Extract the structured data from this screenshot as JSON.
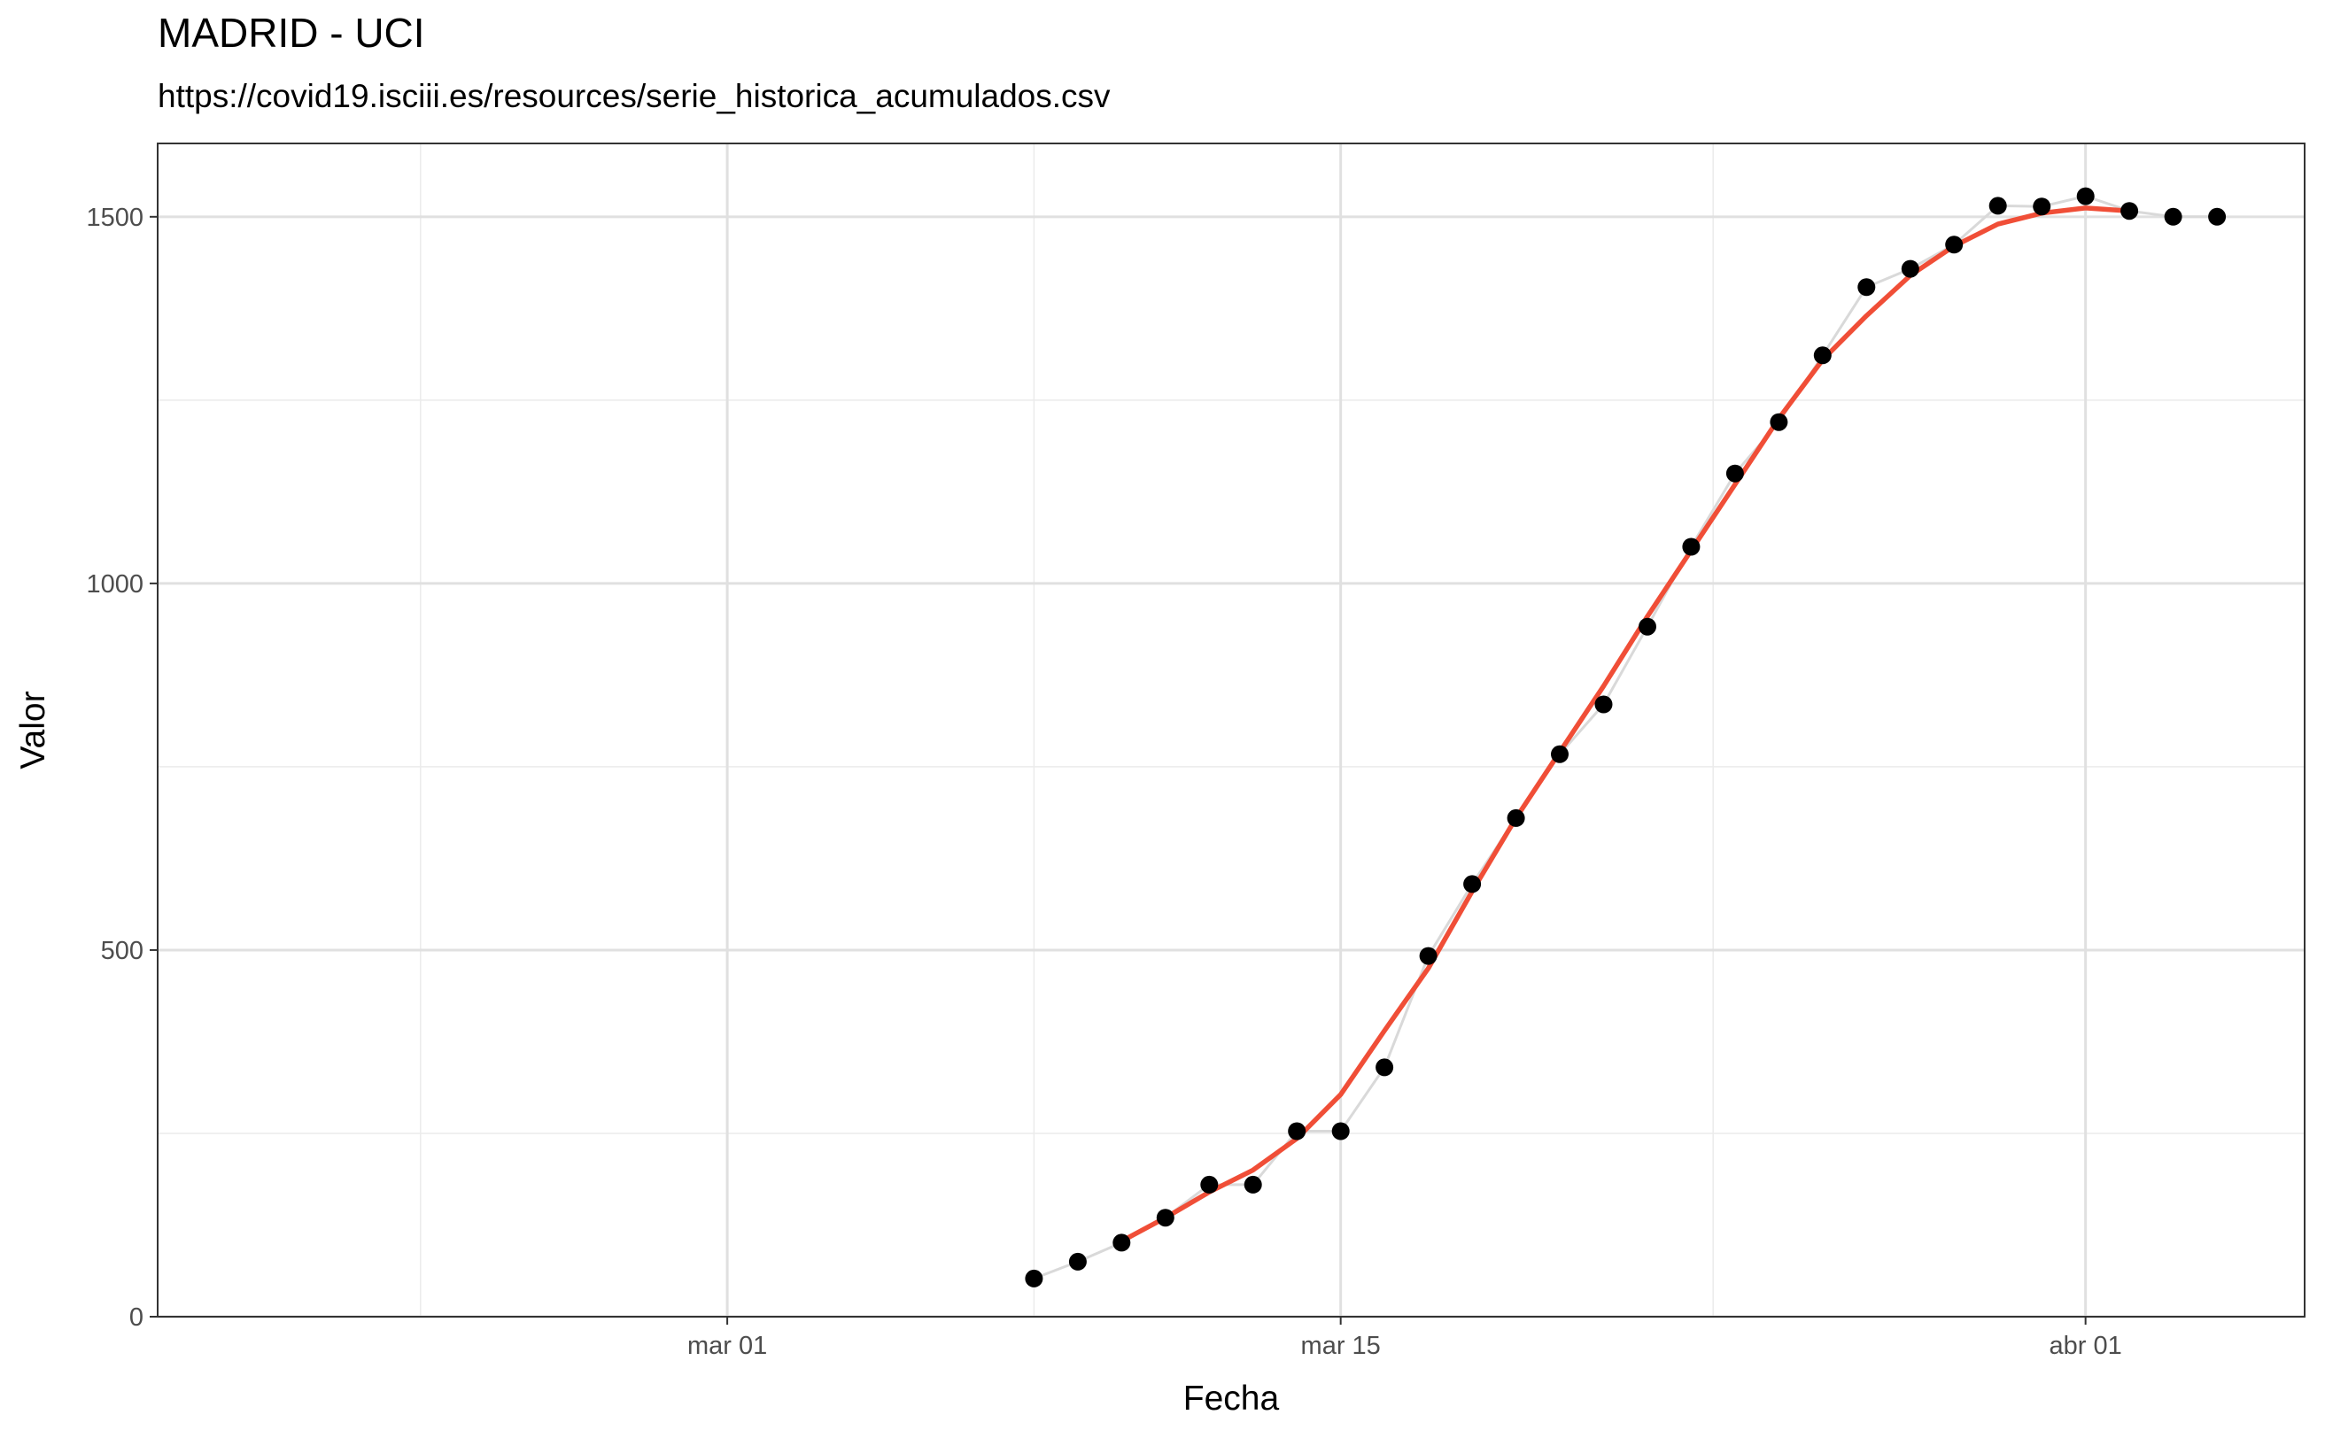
{
  "chart_data": {
    "type": "line",
    "title": "MADRID - UCI",
    "subtitle": "https://covid19.isciii.es/resources/serie_historica_acumulados.csv",
    "xlabel": "Fecha",
    "ylabel": "Valor",
    "x_type": "date",
    "xlim": [
      "2020-02-17",
      "2020-04-06"
    ],
    "ylim": [
      0,
      1600
    ],
    "x_ticks": [
      {
        "value": "2020-03-01",
        "label": "mar 01"
      },
      {
        "value": "2020-03-15",
        "label": "mar 15"
      },
      {
        "value": "2020-04-01",
        "label": "abr 01"
      }
    ],
    "y_ticks": [
      {
        "value": 0,
        "label": "0"
      },
      {
        "value": 500,
        "label": "500"
      },
      {
        "value": 1000,
        "label": "1000"
      },
      {
        "value": 1500,
        "label": "1500"
      }
    ],
    "grid": true,
    "legend": "none",
    "series": [
      {
        "kind": "points-with-line",
        "color": "#000000",
        "line_color": "#d9d9d9",
        "x": [
          "2020-03-08",
          "2020-03-09",
          "2020-03-10",
          "2020-03-11",
          "2020-03-12",
          "2020-03-13",
          "2020-03-14",
          "2020-03-15",
          "2020-03-16",
          "2020-03-17",
          "2020-03-18",
          "2020-03-19",
          "2020-03-20",
          "2020-03-21",
          "2020-03-22",
          "2020-03-23",
          "2020-03-24",
          "2020-03-25",
          "2020-03-26",
          "2020-03-27",
          "2020-03-28",
          "2020-03-29",
          "2020-03-30",
          "2020-03-31",
          "2020-04-01",
          "2020-04-02",
          "2020-04-03",
          "2020-04-04"
        ],
        "values": [
          52,
          75,
          101,
          135,
          180,
          180,
          253,
          253,
          340,
          492,
          590,
          680,
          767,
          835,
          941,
          1050,
          1150,
          1220,
          1311,
          1404,
          1429,
          1462,
          1515,
          1514,
          1528,
          1508,
          1500,
          1500
        ]
      },
      {
        "kind": "smooth-line",
        "color": "#f04e37",
        "x": [
          "2020-03-10",
          "2020-03-11",
          "2020-03-12",
          "2020-03-13",
          "2020-03-14",
          "2020-03-15",
          "2020-03-16",
          "2020-03-17",
          "2020-03-18",
          "2020-03-19",
          "2020-03-20",
          "2020-03-21",
          "2020-03-22",
          "2020-03-23",
          "2020-03-24",
          "2020-03-25",
          "2020-03-26",
          "2020-03-27",
          "2020-03-28",
          "2020-03-29",
          "2020-03-30",
          "2020-03-31",
          "2020-04-01",
          "2020-04-02"
        ],
        "values": [
          103,
          135,
          170,
          200,
          243,
          303,
          390,
          475,
          580,
          680,
          770,
          860,
          955,
          1045,
          1135,
          1225,
          1305,
          1365,
          1420,
          1460,
          1490,
          1505,
          1512,
          1508
        ]
      }
    ]
  }
}
